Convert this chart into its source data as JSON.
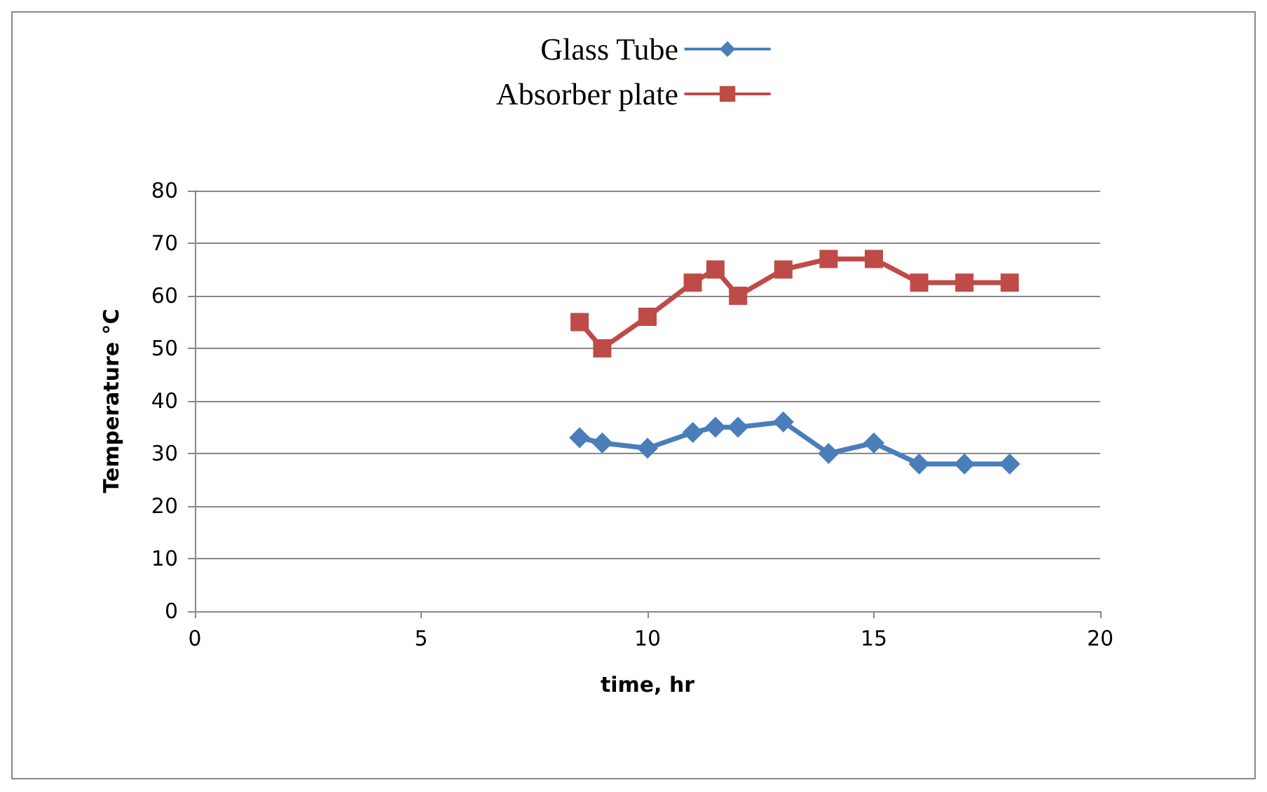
{
  "chart_data": {
    "type": "line",
    "xlabel": "time, hr",
    "ylabel": "Temperature °C",
    "x": [
      8.5,
      9,
      10,
      11,
      11.5,
      12,
      13,
      14,
      15,
      16,
      17,
      18
    ],
    "series": [
      {
        "name": "Glass Tube",
        "color": "#4a7ebb",
        "marker": "diamond",
        "values": [
          33,
          32,
          31,
          34,
          35,
          35,
          36,
          30,
          32,
          28,
          28,
          28
        ]
      },
      {
        "name": "Absorber plate",
        "color": "#be4b48",
        "marker": "square",
        "values": [
          55,
          50,
          56,
          62.5,
          65,
          60,
          65,
          67,
          67,
          62.5,
          62.5,
          62.5
        ]
      }
    ],
    "xlim": [
      0,
      20
    ],
    "xticks": [
      0,
      5,
      10,
      15,
      20
    ],
    "ylim": [
      0,
      80
    ],
    "yticks": [
      0,
      10,
      20,
      30,
      40,
      50,
      60,
      70,
      80
    ],
    "grid": "y",
    "legend": "top",
    "line_style": "solid"
  }
}
